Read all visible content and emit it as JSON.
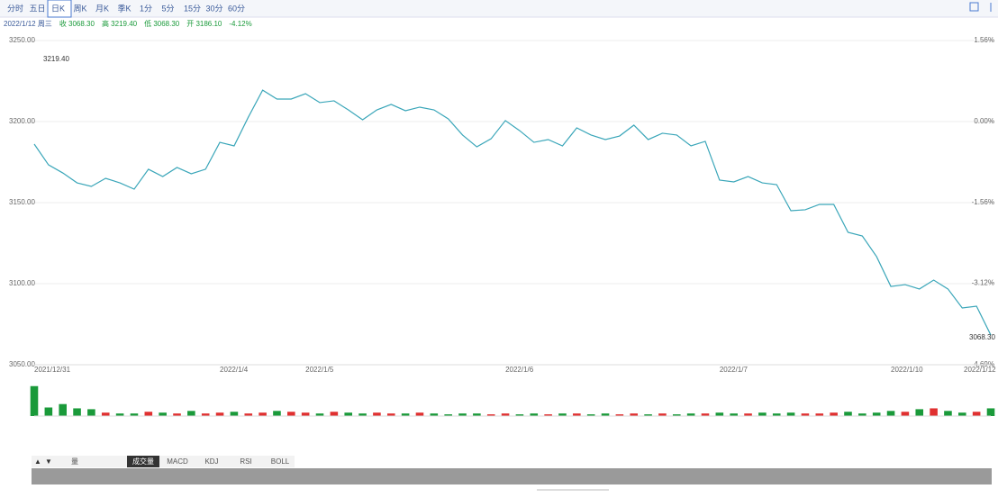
{
  "header": {
    "tabs": [
      "分时",
      "五日",
      "日K",
      "周K",
      "月K",
      "季K",
      "1分",
      "5分",
      "15分",
      "30分",
      "60分"
    ],
    "selected": 2,
    "info": [
      "2022/1/12 周三",
      "收 3068.30",
      "高 3219.40",
      "低 3068.30",
      "开 3186.10",
      "-4.12%"
    ]
  },
  "chart_data": [
    {
      "type": "line",
      "color": "#3aa6b9",
      "categories": [
        "2021/12/31",
        null,
        null,
        null,
        null,
        null,
        null,
        null,
        null,
        null,
        null,
        null,
        null,
        "2022/1/4",
        null,
        null,
        null,
        null,
        null,
        "2022/1/5",
        null,
        null,
        null,
        null,
        null,
        null,
        null,
        null,
        null,
        null,
        null,
        null,
        null,
        "2022/1/6",
        null,
        null,
        null,
        null,
        null,
        null,
        null,
        null,
        null,
        null,
        null,
        null,
        null,
        null,
        "2022/1/7",
        null,
        null,
        null,
        null,
        null,
        null,
        null,
        null,
        null,
        null,
        null,
        "2022/1/10",
        null,
        null,
        null,
        null,
        null,
        null,
        "2022/1/12"
      ],
      "values": [
        3186.1,
        3173.3,
        3168.3,
        3162.2,
        3160.0,
        3165.0,
        3162.2,
        3158.3,
        3170.6,
        3166.1,
        3171.7,
        3167.8,
        3170.6,
        3187.2,
        3185.0,
        3202.8,
        3219.4,
        3213.9,
        3213.9,
        3217.2,
        3211.7,
        3212.8,
        3207.2,
        3201.1,
        3207.2,
        3210.6,
        3206.7,
        3208.9,
        3207.2,
        3201.7,
        3191.7,
        3184.4,
        3189.4,
        3200.6,
        3194.4,
        3187.2,
        3188.9,
        3185.0,
        3196.1,
        3191.7,
        3188.9,
        3191.1,
        3197.8,
        3188.9,
        3192.8,
        3191.7,
        3185.0,
        3187.8,
        3163.9,
        3162.8,
        3166.1,
        3162.2,
        3161.1,
        3145.0,
        3145.6,
        3148.9,
        3148.9,
        3131.7,
        3129.4,
        3116.7,
        3098.3,
        3099.4,
        3096.7,
        3102.2,
        3096.7,
        3085.0,
        3086.1,
        3068.3
      ],
      "ylim": [
        3050,
        3250
      ],
      "yticks": [
        {
          "value": 3250,
          "label": "3250.00"
        },
        {
          "value": 3200,
          "label": "3200.00"
        },
        {
          "value": 3150,
          "label": "3150.00"
        },
        {
          "value": 3100,
          "label": "3100.00"
        },
        {
          "value": 3050,
          "label": "3050.00"
        }
      ],
      "y2lim": [
        -4.69,
        1.56
      ],
      "y2ticks": [
        {
          "value": 1.56,
          "label": "1.56%"
        },
        {
          "value": 0,
          "label": "0.00%"
        },
        {
          "value": -1.56,
          "label": "-1.56%"
        },
        {
          "value": -3.12,
          "label": "-3.12%"
        },
        {
          "value": -4.69,
          "label": "-4.69%"
        }
      ],
      "high_label": "3219.40",
      "last_label": "3068.30",
      "grid": true
    },
    {
      "type": "bar",
      "up_color": "#e03030",
      "down_color": "#1a9a3a",
      "values": [
        35,
        10,
        14,
        9,
        8,
        4,
        3,
        3,
        5,
        4,
        3,
        6,
        3,
        4,
        5,
        3,
        4,
        6,
        5,
        4,
        3,
        5,
        4,
        3,
        4,
        3,
        3,
        4,
        3,
        2,
        3,
        3,
        2,
        3,
        2,
        3,
        2,
        3,
        3,
        2,
        3,
        2,
        3,
        2,
        3,
        2,
        3,
        3,
        4,
        3,
        3,
        4,
        3,
        4,
        3,
        3,
        4,
        5,
        3,
        4,
        6,
        5,
        8,
        9,
        6,
        4,
        5,
        9
      ],
      "ylim": [
        0,
        40
      ]
    }
  ],
  "toolbar": [
    "量",
    "成交量",
    "MACD",
    "KDJ",
    "RSI",
    "BOLL"
  ],
  "toolbar_selected": 1
}
